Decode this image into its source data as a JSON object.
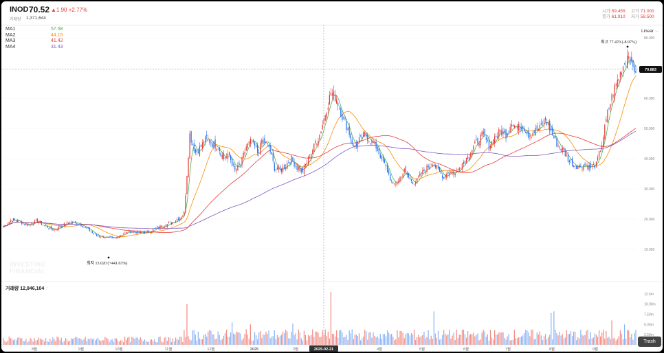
{
  "header": {
    "ticker": "INOD",
    "price": "70.52",
    "change_abs": "▲1.90",
    "change_pct": "+2.77%",
    "volume_label": "거래량",
    "volume_value": "1,371,644",
    "open_label": "시가",
    "open_value": "59.455",
    "high_label": "고가",
    "high_value": "71.000",
    "close_label": "종가",
    "close_value": "61.910",
    "low_label": "저가",
    "low_value": "58.500"
  },
  "ma": [
    {
      "name": "MA1",
      "value": "57.58",
      "color": "#4caf50"
    },
    {
      "name": "MA2",
      "value": "44.15",
      "color": "#fb8c00"
    },
    {
      "name": "MA3",
      "value": "41.42",
      "color": "#e53935"
    },
    {
      "name": "MA4",
      "value": "31.43",
      "color": "#7e57c2"
    }
  ],
  "scale_label": "Linear",
  "crosshair": {
    "price_label": "70.883",
    "date_label": "2025-02-21"
  },
  "annotations": {
    "high": "최고 77.470 (-8.97%)",
    "low": "최저 13.020 (+441.63%)"
  },
  "watermark": [
    "INVESTING",
    "FINANCIAL"
  ],
  "volume_panel": {
    "label": "거래량",
    "value": "12,846,104"
  },
  "trash_label": "Trash",
  "chart_data": {
    "type": "candlestick",
    "price_axis_ticks": [
      "10.000",
      "20.000",
      "30.000",
      "40.000",
      "50.000",
      "60.000",
      "70.000",
      "80.000"
    ],
    "price_axis_values": [
      10,
      20,
      30,
      40,
      50,
      60,
      70,
      80
    ],
    "volume_axis_ticks": [
      "2.50m",
      "5.00m",
      "7.50m",
      "10.00m",
      "12.5m"
    ],
    "volume_axis_values": [
      2.5,
      5,
      7.5,
      10,
      12.5
    ],
    "x_tick_labels": [
      "8월",
      "9월",
      "10월",
      "11월",
      "12월",
      "2025",
      "2월",
      "4월",
      "5월",
      "6월",
      "7월",
      "8월",
      "9월"
    ],
    "ylim": [
      0,
      83
    ],
    "up_color": "#e53935",
    "down_color": "#1e6ff0",
    "ma_colors": [
      "#4caf50",
      "#fb8c00",
      "#e53935",
      "#7e57c2"
    ],
    "close_anchors_description": "approximate closes read from chart",
    "close_anchors": [
      [
        0,
        17.5
      ],
      [
        6,
        20.0
      ],
      [
        12,
        19.0
      ],
      [
        18,
        18.0
      ],
      [
        24,
        19.5
      ],
      [
        30,
        17.5
      ],
      [
        36,
        16.5
      ],
      [
        42,
        18.0
      ],
      [
        48,
        19.0
      ],
      [
        54,
        18.5
      ],
      [
        60,
        16.5
      ],
      [
        66,
        14.5
      ],
      [
        72,
        14.0
      ],
      [
        78,
        13.5
      ],
      [
        84,
        15.0
      ],
      [
        90,
        16.0
      ],
      [
        96,
        15.5
      ],
      [
        102,
        15.5
      ],
      [
        108,
        17.0
      ],
      [
        114,
        18.0
      ],
      [
        120,
        19.0
      ],
      [
        126,
        21.0
      ],
      [
        128,
        22.0
      ],
      [
        130,
        35.0
      ],
      [
        132,
        48.0
      ],
      [
        136,
        42.0
      ],
      [
        140,
        44.0
      ],
      [
        144,
        47.0
      ],
      [
        148,
        45.0
      ],
      [
        152,
        44.0
      ],
      [
        156,
        40.0
      ],
      [
        160,
        41.0
      ],
      [
        164,
        36.0
      ],
      [
        168,
        38.0
      ],
      [
        172,
        44.0
      ],
      [
        176,
        46.0
      ],
      [
        180,
        42.0
      ],
      [
        184,
        46.0
      ],
      [
        188,
        44.0
      ],
      [
        192,
        37.0
      ],
      [
        196,
        36.0
      ],
      [
        200,
        38.0
      ],
      [
        204,
        40.0
      ],
      [
        208,
        37.0
      ],
      [
        212,
        36.0
      ],
      [
        216,
        40.0
      ],
      [
        220,
        44.0
      ],
      [
        224,
        48.0
      ],
      [
        228,
        55.0
      ],
      [
        232,
        62.0
      ],
      [
        236,
        60.0
      ],
      [
        240,
        54.0
      ],
      [
        244,
        50.0
      ],
      [
        248,
        44.0
      ],
      [
        252,
        46.0
      ],
      [
        256,
        48.0
      ],
      [
        260,
        46.0
      ],
      [
        264,
        44.0
      ],
      [
        268,
        40.0
      ],
      [
        272,
        36.0
      ],
      [
        276,
        31.0
      ],
      [
        280,
        33.0
      ],
      [
        284,
        36.0
      ],
      [
        288,
        33.0
      ],
      [
        292,
        32.0
      ],
      [
        296,
        35.0
      ],
      [
        300,
        37.0
      ],
      [
        304,
        39.0
      ],
      [
        308,
        36.0
      ],
      [
        312,
        34.0
      ],
      [
        316,
        36.0
      ],
      [
        320,
        35.0
      ],
      [
        324,
        38.0
      ],
      [
        328,
        40.0
      ],
      [
        332,
        43.0
      ],
      [
        336,
        46.0
      ],
      [
        340,
        48.0
      ],
      [
        344,
        44.0
      ],
      [
        348,
        47.0
      ],
      [
        352,
        49.0
      ],
      [
        356,
        48.0
      ],
      [
        360,
        52.0
      ],
      [
        364,
        50.0
      ],
      [
        368,
        51.0
      ],
      [
        372,
        48.0
      ],
      [
        376,
        49.0
      ],
      [
        380,
        50.0
      ],
      [
        384,
        53.0
      ],
      [
        388,
        49.0
      ],
      [
        392,
        45.0
      ],
      [
        396,
        43.0
      ],
      [
        400,
        40.0
      ],
      [
        404,
        38.0
      ],
      [
        408,
        37.5
      ],
      [
        412,
        38.0
      ],
      [
        416,
        37.0
      ],
      [
        420,
        38.0
      ],
      [
        424,
        45.0
      ],
      [
        428,
        55.0
      ],
      [
        432,
        62.0
      ],
      [
        436,
        67.0
      ],
      [
        440,
        72.0
      ],
      [
        443,
        75.0
      ],
      [
        446,
        70.0
      ],
      [
        448,
        69.5
      ]
    ],
    "volume_spike_days": [
      [
        130,
        10.0
      ],
      [
        232,
        13.0
      ],
      [
        162,
        5.5
      ],
      [
        175,
        5.0
      ],
      [
        305,
        8.2
      ],
      [
        388,
        7.8
      ],
      [
        390,
        8.2
      ],
      [
        205,
        5.2
      ],
      [
        238,
        3.5
      ],
      [
        440,
        5.0
      ],
      [
        431,
        6.0
      ]
    ]
  }
}
